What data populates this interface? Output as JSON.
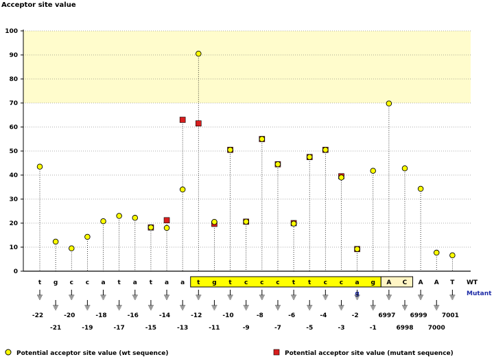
{
  "chart_data": {
    "type": "scatter",
    "ylabel": "Acceptor site value",
    "ylim": [
      0,
      100
    ],
    "yticks": [
      0,
      10,
      20,
      30,
      40,
      50,
      60,
      70,
      80,
      90,
      100
    ],
    "highlight_band": [
      70,
      100
    ],
    "grid": true,
    "legend_position": "bottom",
    "row_labels": {
      "wt": "WT",
      "mutant": "Mutant"
    },
    "positions": [
      {
        "pos": "-22",
        "wt": "t",
        "mutant": "",
        "wt_value": 43.5,
        "mut_value": null
      },
      {
        "pos": "-21",
        "wt": "g",
        "mutant": "",
        "wt_value": 12.3,
        "mut_value": null
      },
      {
        "pos": "-20",
        "wt": "c",
        "mutant": "",
        "wt_value": 9.5,
        "mut_value": null
      },
      {
        "pos": "-19",
        "wt": "c",
        "mutant": "",
        "wt_value": 14.3,
        "mut_value": null
      },
      {
        "pos": "-18",
        "wt": "a",
        "mutant": "",
        "wt_value": 20.8,
        "mut_value": null
      },
      {
        "pos": "-17",
        "wt": "t",
        "mutant": "",
        "wt_value": 23.0,
        "mut_value": null
      },
      {
        "pos": "-16",
        "wt": "a",
        "mutant": "",
        "wt_value": 22.2,
        "mut_value": null
      },
      {
        "pos": "-15",
        "wt": "t",
        "mutant": "",
        "wt_value": 18.2,
        "mut_value": 18.2
      },
      {
        "pos": "-14",
        "wt": "a",
        "mutant": "",
        "wt_value": 18.0,
        "mut_value": 21.2
      },
      {
        "pos": "-13",
        "wt": "a",
        "mutant": "",
        "wt_value": 34.0,
        "mut_value": 63.0
      },
      {
        "pos": "-12",
        "wt": "t",
        "mutant": "",
        "wt_value": 90.5,
        "mut_value": 61.5
      },
      {
        "pos": "-11",
        "wt": "g",
        "mutant": "",
        "wt_value": 20.5,
        "mut_value": 19.7
      },
      {
        "pos": "-10",
        "wt": "t",
        "mutant": "",
        "wt_value": 50.5,
        "mut_value": 50.5
      },
      {
        "pos": "-9",
        "wt": "c",
        "mutant": "",
        "wt_value": 20.6,
        "mut_value": 20.6
      },
      {
        "pos": "-8",
        "wt": "c",
        "mutant": "",
        "wt_value": 55.0,
        "mut_value": 55.0
      },
      {
        "pos": "-7",
        "wt": "c",
        "mutant": "",
        "wt_value": 44.5,
        "mut_value": 44.5
      },
      {
        "pos": "-6",
        "wt": "t",
        "mutant": "",
        "wt_value": 19.8,
        "mut_value": 20.0
      },
      {
        "pos": "-5",
        "wt": "t",
        "mutant": "",
        "wt_value": 47.5,
        "mut_value": 47.5
      },
      {
        "pos": "-4",
        "wt": "c",
        "mutant": "",
        "wt_value": 50.5,
        "mut_value": 50.5
      },
      {
        "pos": "-3",
        "wt": "c",
        "mutant": "",
        "wt_value": 39.0,
        "mut_value": 39.5
      },
      {
        "pos": "-2",
        "wt": "a",
        "mutant": "g",
        "wt_value": 9.2,
        "mut_value": 9.2
      },
      {
        "pos": "-1",
        "wt": "g",
        "mutant": "",
        "wt_value": 41.8,
        "mut_value": null
      },
      {
        "pos": "6997",
        "wt": "A",
        "mutant": "",
        "wt_value": 69.8,
        "mut_value": null
      },
      {
        "pos": "6998",
        "wt": "C",
        "mutant": "",
        "wt_value": 42.8,
        "mut_value": null
      },
      {
        "pos": "6999",
        "wt": "A",
        "mutant": "",
        "wt_value": 34.3,
        "mut_value": null
      },
      {
        "pos": "7000",
        "wt": "A",
        "mutant": "",
        "wt_value": 7.7,
        "mut_value": null
      },
      {
        "pos": "7001",
        "wt": "T",
        "mutant": "",
        "wt_value": 6.6,
        "mut_value": null
      }
    ],
    "series": [
      {
        "name": "Potential acceptor site value (wt sequence)",
        "color": "#ffff00",
        "marker": "circle"
      },
      {
        "name": "Potential acceptor site value (mutant sequence)",
        "color": "#d81e1e",
        "marker": "square"
      }
    ],
    "intron_box": {
      "from": "-12",
      "to": "-1",
      "color": "#ffff00"
    },
    "exon_box": {
      "from": "6997",
      "to": "6998",
      "color": "#fff5c4"
    }
  }
}
